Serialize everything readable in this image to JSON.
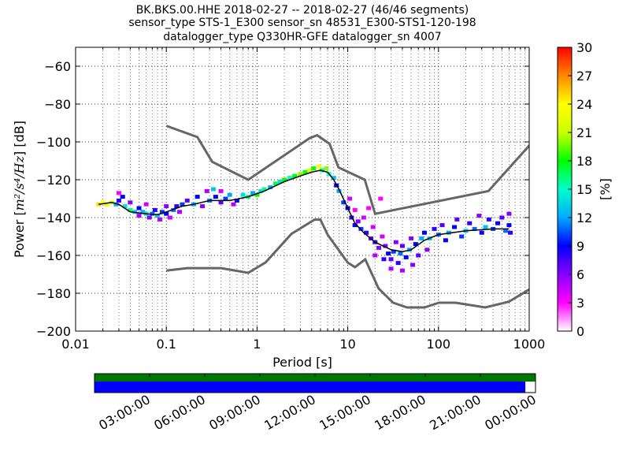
{
  "chart_data": {
    "type": "heatmap",
    "title_lines": [
      "BK.BKS.00.HHE   2018-02-27 -- 2018-02-27  (46/46 segments)",
      "sensor_type STS-1_E300 sensor_sn 48531_E300-STS1-120-198",
      "datalogger_type Q330HR-GFE datalogger_sn 4007"
    ],
    "xlabel": "Period [s]",
    "ylabel_prefix": "Power [",
    "ylabel_math": "m²/s⁴/Hz",
    "ylabel_suffix": "] [dB]",
    "xscale": "log",
    "xlim": [
      0.01,
      1000
    ],
    "ylim": [
      -200,
      -50
    ],
    "x_ticks": [
      {
        "v": 0.01,
        "label": "0.01"
      },
      {
        "v": 0.1,
        "label": "0.1"
      },
      {
        "v": 1,
        "label": "1"
      },
      {
        "v": 10,
        "label": "10"
      },
      {
        "v": 100,
        "label": "100"
      },
      {
        "v": 1000,
        "label": "1000"
      }
    ],
    "y_ticks": [
      {
        "v": -60,
        "label": "−60"
      },
      {
        "v": -80,
        "label": "−80"
      },
      {
        "v": -100,
        "label": "−100"
      },
      {
        "v": -120,
        "label": "−120"
      },
      {
        "v": -140,
        "label": "−140"
      },
      {
        "v": -160,
        "label": "−160"
      },
      {
        "v": -180,
        "label": "−180"
      },
      {
        "v": -200,
        "label": "−200"
      }
    ],
    "grid": "dotted",
    "colorbar": {
      "label": "[%]",
      "min": 0,
      "max": 30,
      "ticks": [
        {
          "v": 30,
          "label": "30"
        },
        {
          "v": 27,
          "label": "27"
        },
        {
          "v": 24,
          "label": "24"
        },
        {
          "v": 21,
          "label": "21"
        },
        {
          "v": 18,
          "label": "18"
        },
        {
          "v": 15,
          "label": "15"
        },
        {
          "v": 12,
          "label": "12"
        },
        {
          "v": 9,
          "label": "9"
        },
        {
          "v": 6,
          "label": "6"
        },
        {
          "v": 3,
          "label": "3"
        },
        {
          "v": 0,
          "label": "0"
        }
      ],
      "colors": [
        "#ffffff",
        "#ff00ff",
        "#8800ff",
        "#0000ff",
        "#00aaff",
        "#00ffcc",
        "#00ff00",
        "#ccff00",
        "#ffff00",
        "#ff8800",
        "#ff0000"
      ]
    },
    "noise_models": [
      {
        "name": "NHNM",
        "color": "#666666",
        "points": [
          [
            0.1,
            -91.5
          ],
          [
            0.22,
            -97.4
          ],
          [
            0.32,
            -110.5
          ],
          [
            0.8,
            -120
          ],
          [
            3.8,
            -98
          ],
          [
            4.6,
            -96.5
          ],
          [
            6.3,
            -101
          ],
          [
            7.9,
            -113.5
          ],
          [
            15.4,
            -120
          ],
          [
            20,
            -138
          ],
          [
            354.8,
            -126
          ],
          [
            10000,
            -48.5
          ]
        ]
      },
      {
        "name": "NLNM",
        "color": "#666666",
        "points": [
          [
            0.1,
            -168
          ],
          [
            0.17,
            -166.7
          ],
          [
            0.4,
            -166.7
          ],
          [
            0.8,
            -169.2
          ],
          [
            1.24,
            -163.7
          ],
          [
            2.4,
            -148.6
          ],
          [
            4.3,
            -141.1
          ],
          [
            5,
            -141.1
          ],
          [
            6,
            -149
          ],
          [
            10,
            -163.8
          ],
          [
            12,
            -166.2
          ],
          [
            15.6,
            -162.1
          ],
          [
            21.9,
            -177.5
          ],
          [
            31.6,
            -185
          ],
          [
            45,
            -187.5
          ],
          [
            70,
            -187.5
          ],
          [
            101,
            -185
          ],
          [
            154,
            -185
          ],
          [
            328,
            -187.5
          ],
          [
            600,
            -184.4
          ],
          [
            1000,
            -178
          ]
        ]
      }
    ],
    "mode_line": {
      "points": [
        [
          0.018,
          -133
        ],
        [
          0.025,
          -132
        ],
        [
          0.03,
          -133
        ],
        [
          0.04,
          -137
        ],
        [
          0.06,
          -138
        ],
        [
          0.08,
          -138.5
        ],
        [
          0.1,
          -137
        ],
        [
          0.15,
          -134
        ],
        [
          0.2,
          -133
        ],
        [
          0.3,
          -131
        ],
        [
          0.5,
          -131
        ],
        [
          0.8,
          -129
        ],
        [
          1.2,
          -126
        ],
        [
          2,
          -121
        ],
        [
          3,
          -118
        ],
        [
          4,
          -116
        ],
        [
          5,
          -115
        ],
        [
          6,
          -116
        ],
        [
          7,
          -120
        ],
        [
          8,
          -125
        ],
        [
          10,
          -135
        ],
        [
          12,
          -143
        ],
        [
          15,
          -148
        ],
        [
          20,
          -153
        ],
        [
          30,
          -157
        ],
        [
          40,
          -158
        ],
        [
          50,
          -157
        ],
        [
          70,
          -152
        ],
        [
          100,
          -149
        ],
        [
          200,
          -147
        ],
        [
          400,
          -146
        ],
        [
          600,
          -146
        ]
      ]
    },
    "density": [
      [
        0.018,
        -133,
        25
      ],
      [
        0.02,
        -132,
        24
      ],
      [
        0.022,
        -133,
        23
      ],
      [
        0.025,
        -132,
        22
      ],
      [
        0.028,
        -133,
        12
      ],
      [
        0.03,
        -131,
        8
      ],
      [
        0.03,
        -127,
        3
      ],
      [
        0.033,
        -129,
        9
      ],
      [
        0.035,
        -134,
        14
      ],
      [
        0.04,
        -136,
        16
      ],
      [
        0.04,
        -132,
        6
      ],
      [
        0.045,
        -137,
        13
      ],
      [
        0.05,
        -135,
        9
      ],
      [
        0.05,
        -139,
        5
      ],
      [
        0.055,
        -137,
        12
      ],
      [
        0.06,
        -138,
        14
      ],
      [
        0.06,
        -133,
        4
      ],
      [
        0.065,
        -140,
        6
      ],
      [
        0.07,
        -138,
        11
      ],
      [
        0.075,
        -136,
        8
      ],
      [
        0.08,
        -139,
        13
      ],
      [
        0.085,
        -141,
        5
      ],
      [
        0.09,
        -137,
        10
      ],
      [
        0.1,
        -138,
        9
      ],
      [
        0.1,
        -134,
        6
      ],
      [
        0.11,
        -140,
        4
      ],
      [
        0.12,
        -136,
        11
      ],
      [
        0.13,
        -134,
        8
      ],
      [
        0.14,
        -137,
        5
      ],
      [
        0.15,
        -133,
        10
      ],
      [
        0.17,
        -131,
        7
      ],
      [
        0.2,
        -133,
        12
      ],
      [
        0.22,
        -129,
        9
      ],
      [
        0.25,
        -134,
        6
      ],
      [
        0.28,
        -126,
        5
      ],
      [
        0.3,
        -131,
        11
      ],
      [
        0.33,
        -125,
        13
      ],
      [
        0.35,
        -129,
        9
      ],
      [
        0.4,
        -132,
        7
      ],
      [
        0.4,
        -126,
        4
      ],
      [
        0.45,
        -130,
        10
      ],
      [
        0.5,
        -128,
        12
      ],
      [
        0.55,
        -133,
        5
      ],
      [
        0.6,
        -131,
        9
      ],
      [
        0.7,
        -128,
        14
      ],
      [
        0.8,
        -129,
        16
      ],
      [
        0.9,
        -127,
        12
      ],
      [
        1,
        -128,
        18
      ],
      [
        1.1,
        -126,
        14
      ],
      [
        1.2,
        -125,
        16
      ],
      [
        1.4,
        -124,
        12
      ],
      [
        1.6,
        -122,
        17
      ],
      [
        1.8,
        -121,
        14
      ],
      [
        2,
        -120,
        18
      ],
      [
        2.3,
        -119,
        15
      ],
      [
        2.6,
        -118,
        18
      ],
      [
        3,
        -117,
        20
      ],
      [
        3.4,
        -116,
        18
      ],
      [
        3.8,
        -115,
        22
      ],
      [
        4.2,
        -114,
        18
      ],
      [
        4.8,
        -113,
        24
      ],
      [
        5.2,
        -115,
        16
      ],
      [
        5.8,
        -114,
        20
      ],
      [
        6.2,
        -117,
        15
      ],
      [
        7,
        -119,
        13
      ],
      [
        7.5,
        -123,
        9
      ],
      [
        8,
        -126,
        12
      ],
      [
        9,
        -132,
        10
      ],
      [
        10,
        -135,
        9
      ],
      [
        10.5,
        -130,
        4
      ],
      [
        11,
        -140,
        8
      ],
      [
        12,
        -144,
        9
      ],
      [
        12,
        -136,
        3
      ],
      [
        13,
        -142,
        6
      ],
      [
        14,
        -146,
        10
      ],
      [
        15,
        -140,
        4
      ],
      [
        16,
        -148,
        8
      ],
      [
        17,
        -135,
        3
      ],
      [
        18,
        -151,
        7
      ],
      [
        19,
        -145,
        4
      ],
      [
        20,
        -153,
        8
      ],
      [
        20,
        -160,
        5
      ],
      [
        22,
        -156,
        6
      ],
      [
        23,
        -130,
        3
      ],
      [
        24,
        -150,
        4
      ],
      [
        25,
        -162,
        8
      ],
      [
        26,
        -155,
        6
      ],
      [
        28,
        -159,
        9
      ],
      [
        30,
        -162,
        7
      ],
      [
        30,
        -167,
        5
      ],
      [
        32,
        -158,
        10
      ],
      [
        34,
        -153,
        6
      ],
      [
        36,
        -164,
        8
      ],
      [
        38,
        -159,
        11
      ],
      [
        40,
        -168,
        5
      ],
      [
        40,
        -155,
        7
      ],
      [
        44,
        -161,
        9
      ],
      [
        48,
        -157,
        12
      ],
      [
        50,
        -151,
        6
      ],
      [
        52,
        -165,
        6
      ],
      [
        56,
        -154,
        9
      ],
      [
        60,
        -160,
        7
      ],
      [
        65,
        -151,
        12
      ],
      [
        70,
        -148,
        9
      ],
      [
        75,
        -157,
        6
      ],
      [
        80,
        -151,
        13
      ],
      [
        90,
        -146,
        8
      ],
      [
        100,
        -149,
        11
      ],
      [
        110,
        -144,
        7
      ],
      [
        120,
        -152,
        9
      ],
      [
        130,
        -148,
        12
      ],
      [
        150,
        -145,
        9
      ],
      [
        160,
        -141,
        7
      ],
      [
        180,
        -150,
        10
      ],
      [
        200,
        -147,
        13
      ],
      [
        220,
        -143,
        8
      ],
      [
        250,
        -146,
        11
      ],
      [
        280,
        -139,
        6
      ],
      [
        300,
        -148,
        9
      ],
      [
        330,
        -145,
        13
      ],
      [
        360,
        -141,
        8
      ],
      [
        400,
        -146,
        10
      ],
      [
        450,
        -143,
        9
      ],
      [
        500,
        -140,
        7
      ],
      [
        550,
        -147,
        11
      ],
      [
        600,
        -138,
        6
      ],
      [
        600,
        -144,
        9
      ],
      [
        620,
        -148,
        8
      ]
    ]
  },
  "timeline": {
    "labels": [
      "03:00:00",
      "06:00:00",
      "09:00:00",
      "12:00:00",
      "15:00:00",
      "18:00:00",
      "21:00:00",
      "00:00:00"
    ],
    "top_color": "#007700",
    "bottom_color": "#0000ff",
    "top_coverage": 1.0,
    "bottom_coverage": 0.977
  }
}
